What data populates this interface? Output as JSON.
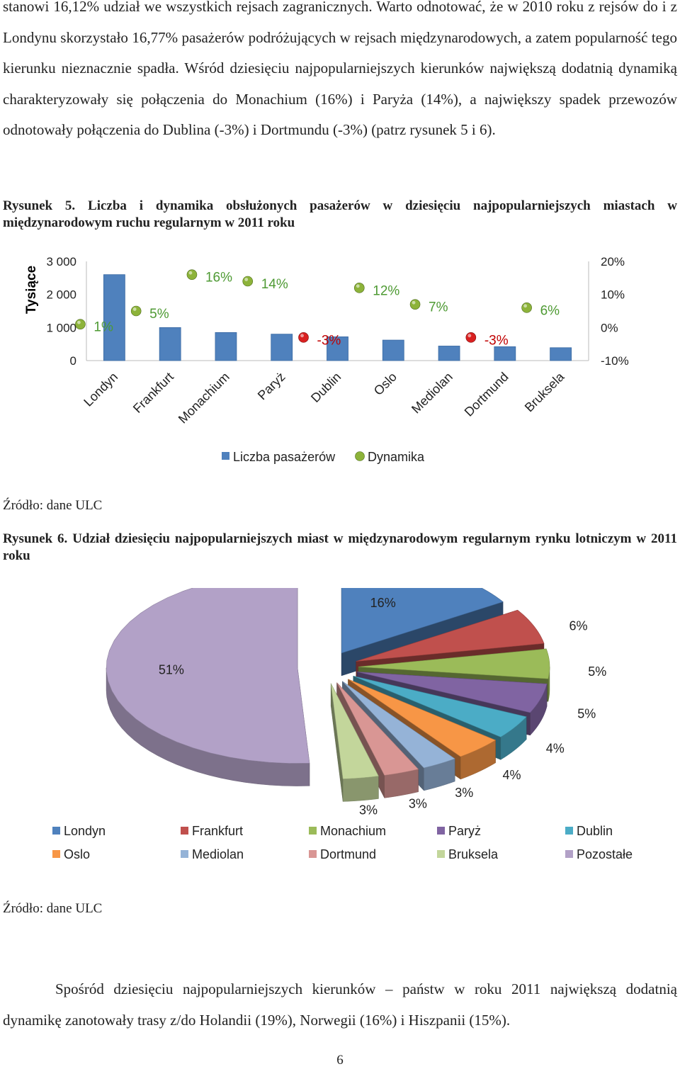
{
  "intro_paragraph": "stanowi 16,12% udział we wszystkich rejsach zagranicznych. Warto odnotować, że w 2010 roku z rejsów do i z Londynu skorzystało 16,77% pasażerów podróżujących w rejsach międzynarodowych, a zatem popularność tego kierunku nieznacznie spadła. Wśród dziesięciu najpopularniejszych kierunków największą dodatnią dynamiką charakteryzowały się połączenia do Monachium (16%) i Paryża (14%), a największy spadek przewozów odnotowały połączenia do Dublina (-3%) i Dortmundu (-3%) (patrz rysunek 5 i 6).",
  "figure5": {
    "label": "Rysunek 5.",
    "caption": "Liczba i dynamika obsłużonych pasażerów w dziesięciu najpopularniejszych miastach w międzynarodowym ruchu regularnym w 2011 roku",
    "source": "Źródło: dane ULC"
  },
  "figure6": {
    "label": "Rysunek 6.",
    "caption": "Udział dziesięciu najpopularniejszych miast w międzynarodowym regularnym rynku lotniczym w 2011 roku",
    "source": "Źródło: dane ULC"
  },
  "closing_paragraph": "Spośród dziesięciu najpopularniejszych kierunków – państw w roku 2011 największą dodatnią dynamikę zanotowały trasy z/do Holandii (19%), Norwegii (16%) i Hiszpanii (15%).",
  "page_number": "6",
  "chart_data": [
    {
      "type": "bar",
      "ylabel": "Tysiące",
      "ylim": [
        0,
        3000
      ],
      "y_ticks": [
        "0",
        "1 000",
        "2 000",
        "3 000"
      ],
      "y2lim": [
        -10,
        20
      ],
      "y2_ticks": [
        "-10%",
        "0%",
        "10%",
        "20%"
      ],
      "categories": [
        "Londyn",
        "Frankfurt",
        "Monachium",
        "Paryż",
        "Dublin",
        "Oslo",
        "Mediolan",
        "Dortmund",
        "Bruksela"
      ],
      "series": [
        {
          "name": "Liczba pasażerów",
          "kind": "bar",
          "values": [
            2600,
            1000,
            850,
            800,
            720,
            620,
            440,
            420,
            390
          ],
          "color": "#4F81BD"
        },
        {
          "name": "Dynamika",
          "kind": "marker",
          "values": [
            1,
            5,
            16,
            14,
            -3,
            12,
            7,
            -3,
            6
          ],
          "labels": [
            "1%",
            "5%",
            "16%",
            "14%",
            "-3%",
            "12%",
            "7%",
            "-3%",
            "6%"
          ],
          "color": "#8DB33A",
          "negative_color": "#D92020"
        }
      ],
      "legend_position": "bottom",
      "grid": false
    },
    {
      "type": "pie",
      "labels": [
        "Londyn",
        "Frankfurt",
        "Monachium",
        "Paryż",
        "Dublin",
        "Oslo",
        "Mediolan",
        "Dortmund",
        "Bruksela",
        "Pozostałe"
      ],
      "values": [
        16,
        6,
        5,
        5,
        4,
        4,
        3,
        3,
        3,
        51
      ],
      "value_labels": [
        "16%",
        "6%",
        "5%",
        "5%",
        "4%",
        "4%",
        "3%",
        "3%",
        "3%",
        "51%"
      ],
      "colors": [
        "#4F81BD",
        "#C0504D",
        "#9BBB59",
        "#8064A2",
        "#4BACC6",
        "#F79646",
        "#95B3D7",
        "#D99694",
        "#C3D69B",
        "#B2A1C7"
      ],
      "style": "3d-exploded",
      "legend_position": "bottom"
    }
  ]
}
